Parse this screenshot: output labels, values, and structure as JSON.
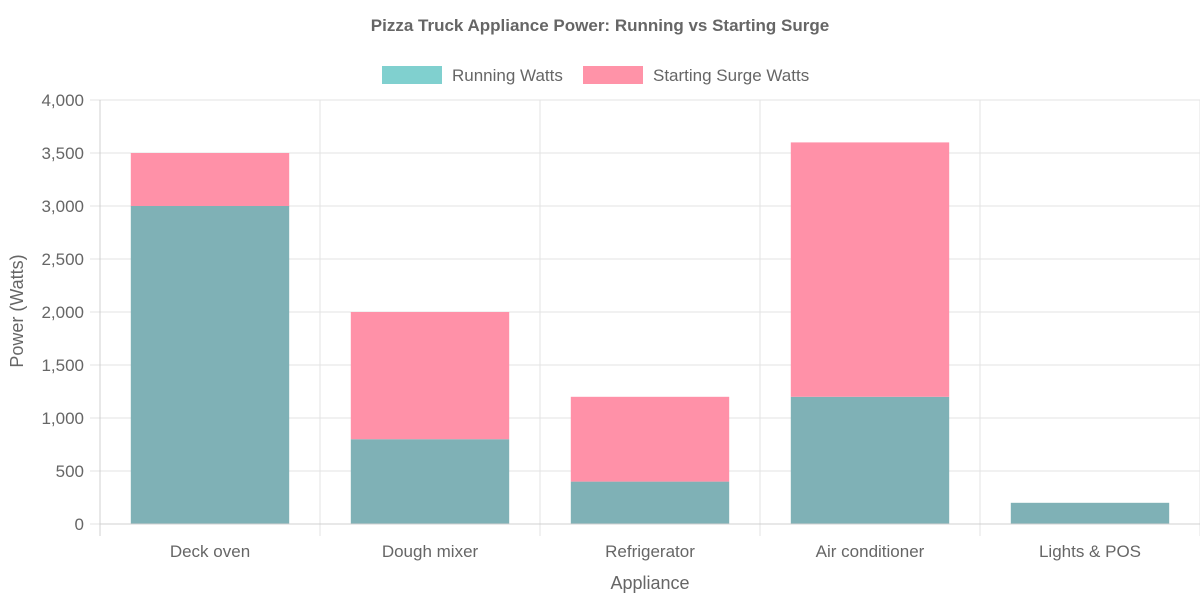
{
  "chart_data": {
    "type": "bar",
    "stacked": true,
    "title": "Pizza Truck Appliance Power: Running vs Starting Surge",
    "xlabel": "Appliance",
    "ylabel": "Power (Watts)",
    "categories": [
      "Deck oven",
      "Dough mixer",
      "Refrigerator",
      "Air conditioner",
      "Lights & POS"
    ],
    "series": [
      {
        "name": "Running Watts",
        "values": [
          3000,
          800,
          400,
          1200,
          200
        ],
        "color": "#7fb1b6",
        "legend_color": "#80d0cf"
      },
      {
        "name": "Starting Surge Watts",
        "values": [
          500,
          1200,
          800,
          2400,
          0
        ],
        "color": "#ff91a8",
        "legend_color": "#ff93a8"
      }
    ],
    "ylim": [
      0,
      4000
    ],
    "yticks": [
      "0",
      "500",
      "1,000",
      "1,500",
      "2,000",
      "2,500",
      "3,000",
      "3,500",
      "4,000"
    ],
    "grid": true,
    "legend_position": "top-center"
  }
}
